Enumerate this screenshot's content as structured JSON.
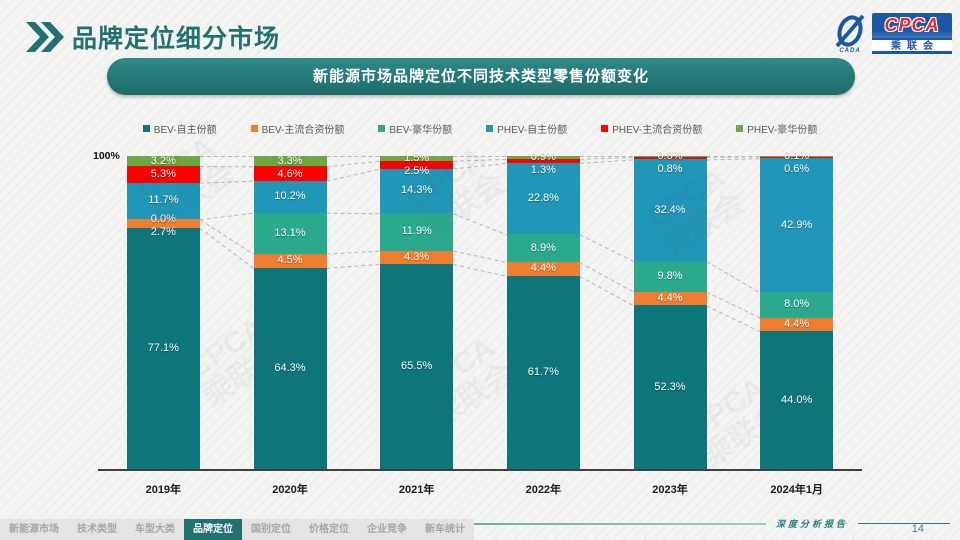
{
  "header": {
    "title": "品牌定位细分市场",
    "banner": "新能源市场品牌定位不同技术类型零售份额变化",
    "logo": {
      "cpca": "CPCA",
      "sub": "乘联会",
      "emblem_sub": "CADA"
    }
  },
  "chart_data": {
    "type": "bar",
    "stacked": true,
    "unit": "%",
    "title": "新能源市场品牌定位不同技术类型零售份额变化",
    "categories": [
      "2019年",
      "2020年",
      "2021年",
      "2022年",
      "2023年",
      "2024年1月"
    ],
    "axis_top_label": "100%",
    "ylim": [
      0,
      100
    ],
    "gridlines": false,
    "legend_position": "top",
    "series": [
      {
        "name": "BEV-自主份额",
        "color": "#0e767a",
        "values": [
          77.1,
          64.3,
          65.5,
          61.7,
          52.3,
          44.0
        ]
      },
      {
        "name": "BEV-主流合资份额",
        "color": "#ed7d31",
        "values": [
          2.7,
          4.5,
          4.3,
          4.4,
          4.4,
          4.4
        ]
      },
      {
        "name": "BEV-豪华份额",
        "color": "#2ba98d",
        "values": [
          0.0,
          13.1,
          11.9,
          8.9,
          9.8,
          8.0
        ]
      },
      {
        "name": "PHEV-自主份额",
        "color": "#2096b8",
        "values": [
          11.7,
          10.2,
          14.3,
          22.8,
          32.4,
          42.9
        ]
      },
      {
        "name": "PHEV-主流合资份额",
        "color": "#fe0000",
        "values": [
          5.3,
          4.6,
          2.5,
          1.3,
          0.8,
          0.6
        ]
      },
      {
        "name": "PHEV-豪华份额",
        "color": "#69a842",
        "values": [
          3.2,
          3.3,
          1.5,
          0.9,
          0.3,
          0.1
        ]
      }
    ]
  },
  "watermark": "CPCA\n乘联会",
  "footer": {
    "report_label": "深度分析报告",
    "page_number": "14",
    "nav": [
      {
        "label": "新能源市场",
        "active": false
      },
      {
        "label": "技术类型",
        "active": false
      },
      {
        "label": "车型大类",
        "active": false
      },
      {
        "label": "品牌定位",
        "active": true
      },
      {
        "label": "国别定位",
        "active": false
      },
      {
        "label": "价格定位",
        "active": false
      },
      {
        "label": "企业竞争",
        "active": false
      },
      {
        "label": "新车统计",
        "active": false
      }
    ]
  }
}
